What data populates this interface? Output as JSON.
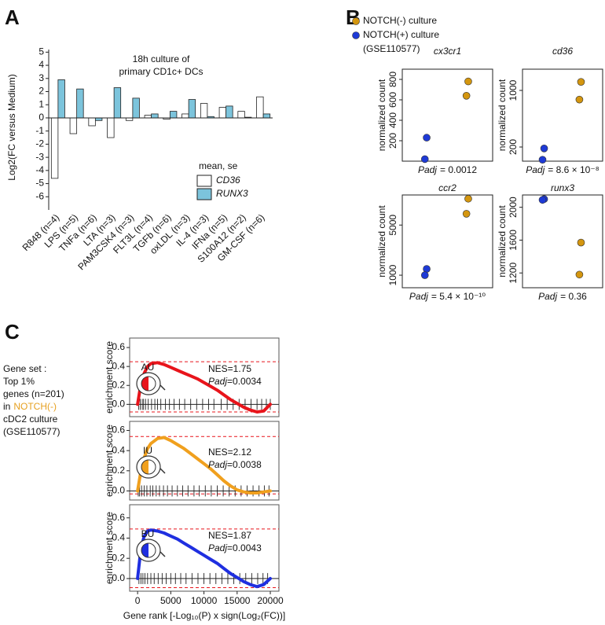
{
  "chart_data": [
    {
      "type": "bar",
      "panel": "A",
      "title_lines": [
        "18h culture of",
        "primary CD1c+ DCs"
      ],
      "y_label": "Log2(FC versus Medium)",
      "categories": [
        "R848 (n=4)",
        "LPS (n=5)",
        "TNFa (n=6)",
        "LTA (n=3)",
        "PAM3CSK4 (n=3)",
        "FLT3L (n=4)",
        "TGFb (n=6)",
        "oxLDL (n=3)",
        "IL-4 (n=3)",
        "IFNa (n=5)",
        "S100A12 (n=2)",
        "GM-CSF (n=6)"
      ],
      "series": [
        {
          "name": "CD36",
          "color": "#ffffff",
          "values": [
            -4.6,
            -1.2,
            -0.6,
            -1.5,
            -0.2,
            0.2,
            -0.1,
            0.3,
            1.1,
            0.8,
            0.5,
            1.6
          ]
        },
        {
          "name": "RUNX3",
          "color": "#7cc4dc",
          "values": [
            2.9,
            2.2,
            -0.2,
            2.3,
            1.5,
            0.3,
            0.5,
            1.4,
            0.1,
            0.9,
            0.05,
            0.3
          ]
        }
      ],
      "legend_title": "mean, se",
      "ylim": [
        -7,
        5.2
      ],
      "yticks": [
        -6,
        -5,
        -4,
        -3,
        -2,
        -1,
        0,
        1,
        2,
        3,
        4,
        5
      ]
    },
    {
      "type": "scatter",
      "panel": "B",
      "title": "cx3cr1",
      "y_label": "normalized count",
      "padj_label": "Padj",
      "padj_value": "= 0.0012",
      "series": [
        {
          "name": "NOTCH(-) culture",
          "color": "#d4960f",
          "values": [
            780,
            640
          ]
        },
        {
          "name": "NOTCH(+) culture",
          "color": "#1e3ad6",
          "values": [
            230,
            20
          ]
        }
      ],
      "legend_note": "(GSE110577)",
      "ylim": [
        0,
        900
      ],
      "yticks": [
        200,
        400,
        600,
        800
      ]
    },
    {
      "type": "scatter",
      "title": "cd36",
      "y_label": "normalized count",
      "padj_label": "Padj",
      "padj_value": "= 8.6 × 10⁻⁸",
      "series": [
        {
          "color": "#d4960f",
          "values": [
            1120,
            870
          ]
        },
        {
          "color": "#1e3ad6",
          "values": [
            180,
            20
          ]
        }
      ],
      "ylim": [
        0,
        1300
      ],
      "yticks": [
        200,
        1000
      ]
    },
    {
      "type": "scatter",
      "title": "ccr2",
      "y_label": "normalized count",
      "padj_label": "Padj",
      "padj_value": "= 5.4 × 10⁻¹⁰",
      "series": [
        {
          "color": "#d4960f",
          "values": [
            7100,
            5900
          ]
        },
        {
          "color": "#1e3ad6",
          "values": [
            1500,
            1000
          ]
        }
      ],
      "ylim": [
        0,
        7400
      ],
      "yticks": [
        1000,
        5000
      ]
    },
    {
      "type": "scatter",
      "title": "runx3",
      "y_label": "normalized count",
      "padj_label": "Padj",
      "padj_value": "= 0.36",
      "series": [
        {
          "color": "#d4960f",
          "values": [
            1570,
            1180
          ]
        },
        {
          "color": "#1e3ad6",
          "values": [
            2100,
            2090
          ]
        }
      ],
      "ylim": [
        1020,
        2150
      ],
      "yticks": [
        1200,
        1600,
        2000
      ]
    },
    {
      "type": "line",
      "panel": "C",
      "y_label": "enrichment score",
      "icon_label": "AU",
      "nes": "NES=1.75",
      "padj_label": "Padj",
      "padj_value": "=0.0034",
      "gene_set": {
        "lines": [
          "Gene set :",
          "Top 1%",
          "genes (n=201)",
          "in"
        ],
        "highlight": [
          "NOTCH(-)",
          "cDC2 culture",
          "(GSE110577)"
        ],
        "highlight_color": "#e6a020"
      },
      "x": [
        0,
        500,
        1000,
        1500,
        2000,
        3000,
        4000,
        5000,
        6000,
        7000,
        8000,
        9000,
        10000,
        11000,
        12000,
        13000,
        14000,
        15000,
        16000,
        17000,
        18000,
        19000,
        20000
      ],
      "series": [
        {
          "color": "#e8141b",
          "values": [
            0,
            0.22,
            0.33,
            0.4,
            0.43,
            0.44,
            0.42,
            0.39,
            0.36,
            0.33,
            0.3,
            0.27,
            0.23,
            0.19,
            0.15,
            0.1,
            0.05,
            0.01,
            -0.03,
            -0.06,
            -0.08,
            -0.07,
            0
          ]
        }
      ],
      "dashed": [
        0.45,
        -0.08
      ],
      "hits": [
        150,
        400,
        700,
        900,
        1200,
        1600,
        2100,
        2600,
        3000,
        3500,
        4200,
        4800,
        5500,
        6300,
        7100,
        8000,
        8900,
        9800,
        10700,
        11500,
        12600,
        13500,
        14400,
        15300,
        16200,
        17100,
        18000,
        18700,
        19400,
        20000
      ],
      "xlim": [
        -1200,
        21300
      ],
      "ylim": [
        -0.13,
        0.7
      ],
      "yticks": [
        {
          "value": 0,
          "label": "0.0"
        },
        {
          "value": 0.2,
          "label": "0.2"
        },
        {
          "value": 0.4,
          "label": "0.4"
        },
        {
          "value": 0.6,
          "label": "0.6"
        }
      ]
    },
    {
      "type": "line",
      "y_label": "enrichment score",
      "icon_label": "IU",
      "nes": "NES=2.12",
      "padj_label": "Padj",
      "padj_value": "=0.0038",
      "x": [
        0,
        500,
        1000,
        1500,
        2000,
        3000,
        4000,
        5000,
        6000,
        7000,
        8000,
        9000,
        10000,
        11000,
        12000,
        13000,
        14000,
        15000,
        16000,
        17000,
        18000,
        19000,
        20000
      ],
      "series": [
        {
          "color": "#f0a01e",
          "values": [
            0,
            0.2,
            0.33,
            0.42,
            0.47,
            0.52,
            0.53,
            0.5,
            0.46,
            0.42,
            0.37,
            0.32,
            0.27,
            0.22,
            0.16,
            0.1,
            0.05,
            0.01,
            -0.01,
            -0.02,
            -0.02,
            -0.01,
            0
          ]
        }
      ],
      "dashed": [
        0.54,
        -0.03
      ],
      "hits": [
        100,
        300,
        600,
        1000,
        1400,
        1900,
        2300,
        2800,
        3300,
        3900,
        4500,
        5200,
        6000,
        6800,
        7600,
        8500,
        9300,
        10200,
        11100,
        12000,
        12900,
        13800,
        14700,
        15600,
        16500,
        17400,
        18300,
        19100,
        19800
      ],
      "xlim": [
        -1200,
        21300
      ],
      "ylim": [
        -0.09,
        0.69
      ],
      "yticks": [
        {
          "value": 0,
          "label": "0.0"
        },
        {
          "value": 0.2,
          "label": "0.2"
        },
        {
          "value": 0.4,
          "label": "0.4"
        },
        {
          "value": 0.6,
          "label": "0.6"
        }
      ]
    },
    {
      "type": "line",
      "y_label": "enrichment score",
      "icon_label": "BU",
      "nes": "NES=1.87",
      "padj_label": "Padj",
      "padj_value": "=0.0043",
      "x": [
        0,
        500,
        1000,
        1500,
        2000,
        3000,
        4000,
        5000,
        6000,
        7000,
        8000,
        9000,
        10000,
        11000,
        12000,
        13000,
        14000,
        15000,
        16000,
        17000,
        18000,
        19000,
        20000
      ],
      "series": [
        {
          "color": "#1f2fe0",
          "values": [
            0,
            0.3,
            0.42,
            0.47,
            0.48,
            0.47,
            0.45,
            0.42,
            0.39,
            0.35,
            0.31,
            0.27,
            0.23,
            0.19,
            0.15,
            0.1,
            0.05,
            0.01,
            -0.03,
            -0.06,
            -0.08,
            -0.06,
            0
          ]
        }
      ],
      "dashed": [
        0.49,
        -0.09
      ],
      "hits": [
        200,
        500,
        800,
        1100,
        1500,
        2000,
        2500,
        3100,
        3700,
        4300,
        5000,
        5700,
        6500,
        7300,
        8200,
        9100,
        10000,
        10900,
        11800,
        12700,
        13600,
        14500,
        15400,
        16300,
        17200,
        18100,
        18900,
        19600
      ],
      "xlim": [
        -1200,
        21300
      ],
      "ylim": [
        -0.125,
        0.73
      ],
      "yticks": [
        {
          "value": 0,
          "label": "0.0"
        },
        {
          "value": 0.2,
          "label": "0.2"
        },
        {
          "value": 0.4,
          "label": "0.4"
        },
        {
          "value": 0.6,
          "label": "0.6"
        }
      ],
      "xticks": [
        0,
        5000,
        10000,
        15000,
        20000
      ],
      "x_label": "Gene rank [-Log₁₀(P) x sign(Log₂(FC))]"
    }
  ]
}
